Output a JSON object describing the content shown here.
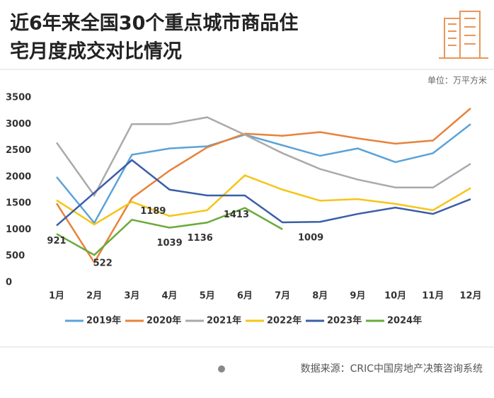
{
  "chart_data": {
    "type": "line",
    "title": "近6年来全国30个重点城市商品住宅月度成交对比情况",
    "title_lines": [
      "近6年来全国30个重点城市商品住",
      "宅月度成交对比情况"
    ],
    "unit": "单位：万平方米",
    "source": "数据来源：CRIC中国房地产决策咨询系统",
    "categories": [
      "1月",
      "2月",
      "3月",
      "4月",
      "5月",
      "6月",
      "7月",
      "8月",
      "9月",
      "10月",
      "11月",
      "12月"
    ],
    "ylim": [
      0,
      3500
    ],
    "yticks": [
      0,
      500,
      1000,
      1500,
      2000,
      2500,
      3000,
      3500
    ],
    "legend": "bottom",
    "series": [
      {
        "name": "2019年",
        "color": "#5ba3d9",
        "values": [
          2000,
          1130,
          2420,
          2540,
          2580,
          2800,
          2600,
          2400,
          2540,
          2280,
          2450,
          3000
        ]
      },
      {
        "name": "2020年",
        "color": "#e8823a",
        "values": [
          1500,
          380,
          1600,
          2120,
          2560,
          2820,
          2780,
          2850,
          2730,
          2630,
          2690,
          3300
        ]
      },
      {
        "name": "2021年",
        "color": "#aaaaaa",
        "values": [
          2650,
          1650,
          3000,
          3000,
          3130,
          2800,
          2450,
          2150,
          1950,
          1800,
          1800,
          2250
        ]
      },
      {
        "name": "2022年",
        "color": "#f5c518",
        "values": [
          1560,
          1100,
          1530,
          1260,
          1370,
          2030,
          1760,
          1550,
          1580,
          1490,
          1370,
          1790
        ]
      },
      {
        "name": "2023年",
        "color": "#3a5ea8",
        "values": [
          1080,
          1700,
          2320,
          1760,
          1650,
          1650,
          1140,
          1150,
          1300,
          1420,
          1300,
          1580
        ]
      },
      {
        "name": "2024年",
        "color": "#6aaa3a",
        "values": [
          921,
          522,
          1189,
          1039,
          1136,
          1413,
          1009,
          null,
          null,
          null,
          null,
          null
        ],
        "show_labels": true
      }
    ]
  }
}
